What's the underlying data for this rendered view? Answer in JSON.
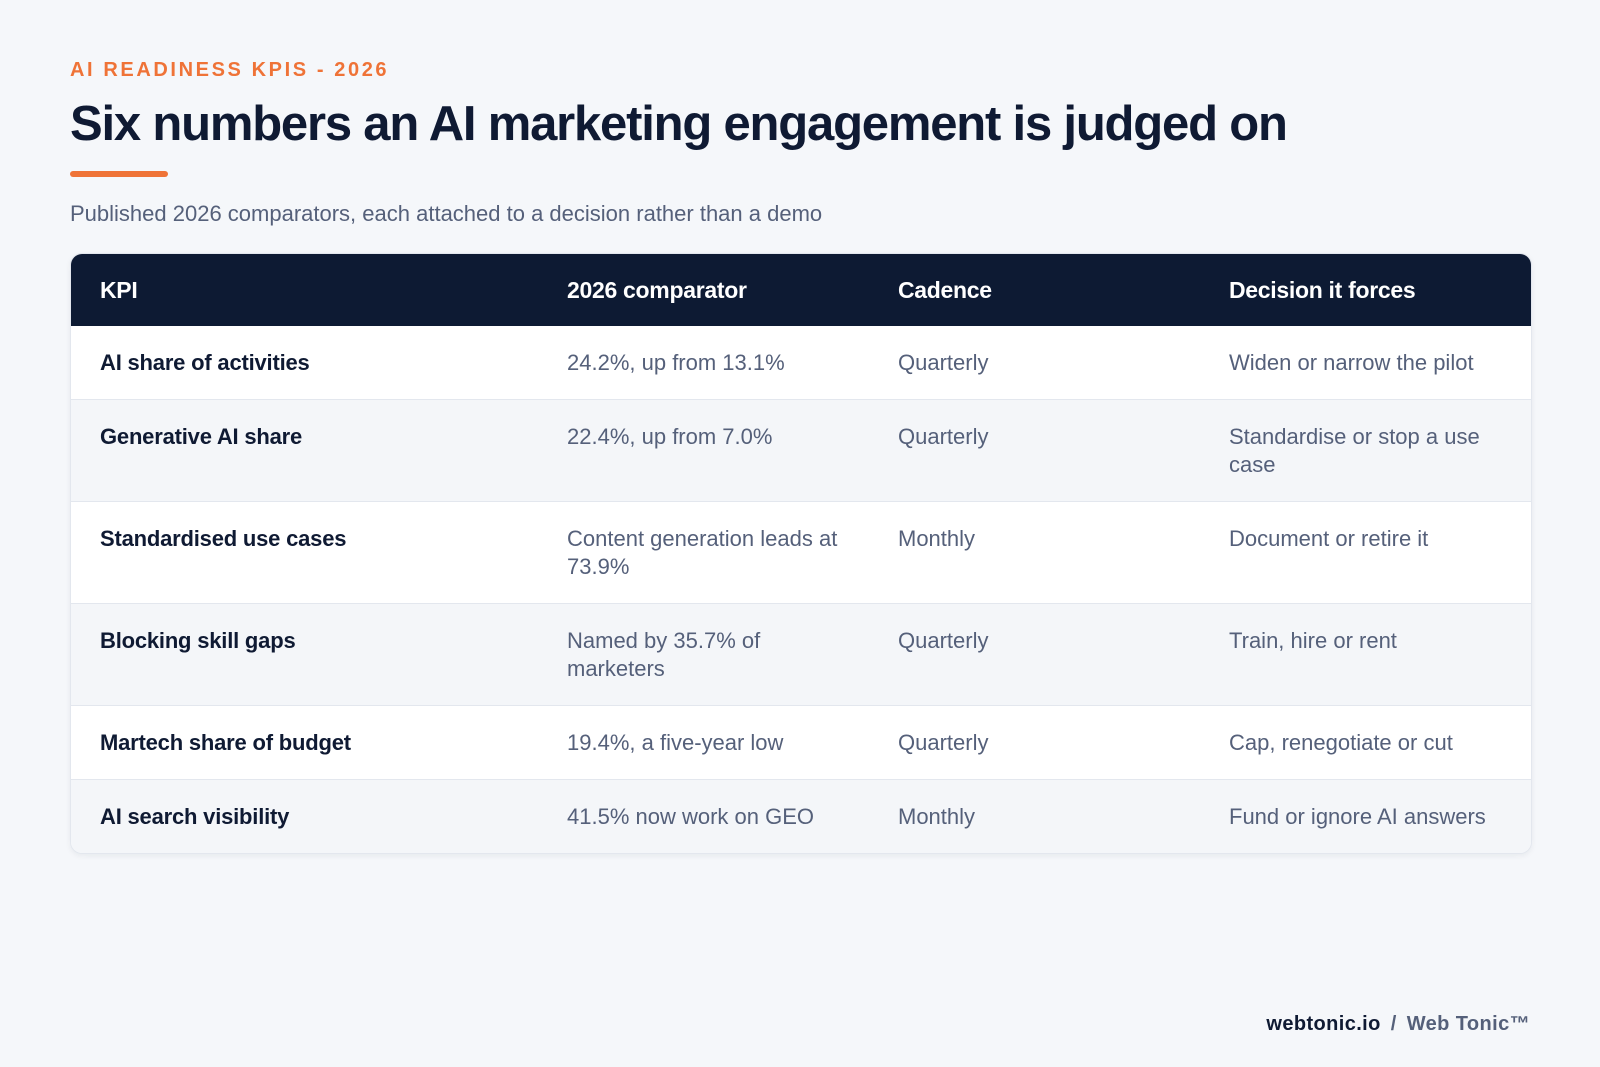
{
  "header": {
    "eyebrow": "AI READINESS KPIS - 2026",
    "title": "Six numbers an AI marketing engagement is judged on",
    "subtitle": "Published 2026 comparators, each attached to a decision rather than a demo"
  },
  "table": {
    "columns": [
      "KPI",
      "2026 comparator",
      "Cadence",
      "Decision it forces"
    ],
    "rows": [
      {
        "kpi": "AI share of activities",
        "comparator": "24.2%, up from 13.1%",
        "cadence": "Quarterly",
        "decision": "Widen or narrow the pilot"
      },
      {
        "kpi": "Generative AI share",
        "comparator": "22.4%, up from 7.0%",
        "cadence": "Quarterly",
        "decision": "Standardise or stop a use case"
      },
      {
        "kpi": "Standardised use cases",
        "comparator": "Content generation leads at 73.9%",
        "cadence": "Monthly",
        "decision": "Document or retire it"
      },
      {
        "kpi": "Blocking skill gaps",
        "comparator": "Named by 35.7% of marketers",
        "cadence": "Quarterly",
        "decision": "Train, hire or rent"
      },
      {
        "kpi": "Martech share of budget",
        "comparator": "19.4%, a five-year low",
        "cadence": "Quarterly",
        "decision": "Cap, renegotiate or cut"
      },
      {
        "kpi": "AI search visibility",
        "comparator": "41.5% now work on GEO",
        "cadence": "Monthly",
        "decision": "Fund or ignore AI answers"
      }
    ]
  },
  "footer": {
    "domain": "webtonic.io",
    "separator": "/",
    "brand": "Web Tonic™"
  },
  "colors": {
    "accent": "#ef7337",
    "navy": "#0d1a33",
    "muted_text": "#55607a",
    "background": "#f5f7fa"
  }
}
